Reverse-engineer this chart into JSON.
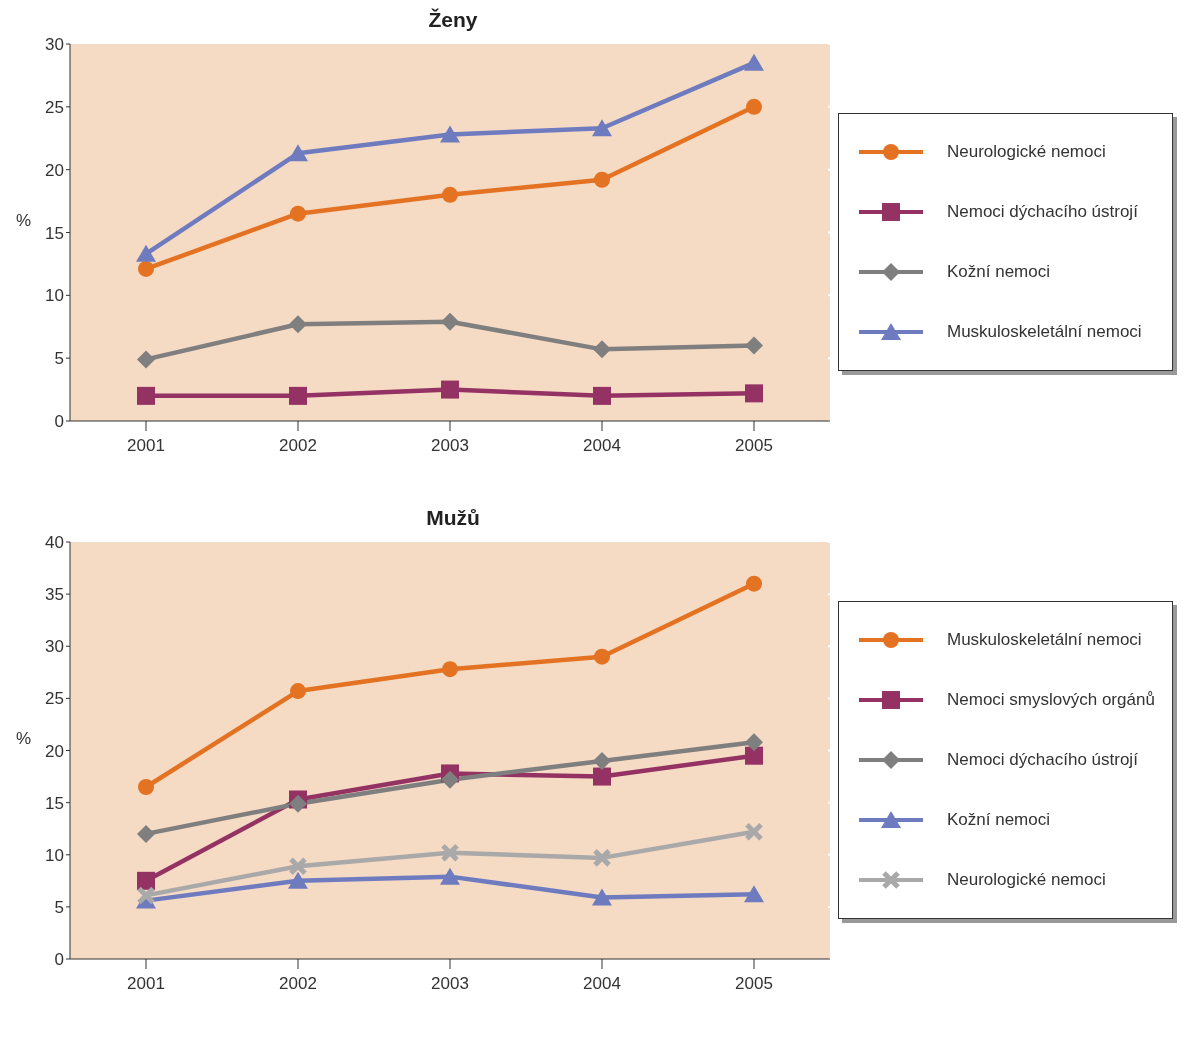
{
  "chart_data": [
    {
      "type": "line",
      "title": "Ženy",
      "ylabel": "%",
      "categories": [
        "2001",
        "2002",
        "2003",
        "2004",
        "2005"
      ],
      "ylim": [
        0,
        30
      ],
      "yticks": [
        0,
        5,
        10,
        15,
        20,
        25,
        30
      ],
      "grid": "y",
      "legend": "right",
      "line_style": "solid",
      "series": [
        {
          "name": "Neurologické nemoci",
          "color": "#e37222",
          "marker": "circle",
          "values": [
            12.1,
            16.5,
            18,
            19.2,
            25
          ]
        },
        {
          "name": "Nemoci dýchacího ústrojí",
          "color": "#953264",
          "marker": "square",
          "values": [
            2,
            2,
            2.5,
            2,
            2.2
          ]
        },
        {
          "name": "Kožní nemoci",
          "color": "#7f7f7f",
          "marker": "diamond",
          "values": [
            4.9,
            7.7,
            7.9,
            5.7,
            6
          ]
        },
        {
          "name": "Muskuloskeletální nemoci",
          "color": "#6f7bbf",
          "marker": "triangle",
          "values": [
            13.3,
            21.3,
            22.8,
            23.3,
            28.5
          ]
        }
      ]
    },
    {
      "type": "line",
      "title": "Mužů",
      "ylabel": "%",
      "categories": [
        "2001",
        "2002",
        "2003",
        "2004",
        "2005"
      ],
      "ylim": [
        0,
        40
      ],
      "yticks": [
        0,
        5,
        10,
        15,
        20,
        25,
        30,
        35,
        40
      ],
      "grid": "y",
      "legend": "right",
      "line_style": "solid",
      "series": [
        {
          "name": "Muskuloskeletální nemoci",
          "color": "#e37222",
          "marker": "circle",
          "values": [
            16.5,
            25.7,
            27.8,
            29,
            36
          ]
        },
        {
          "name": "Nemoci smyslových orgánů",
          "color": "#953264",
          "marker": "square",
          "values": [
            7.5,
            15.3,
            17.8,
            17.5,
            19.5
          ]
        },
        {
          "name": "Nemoci dýchacího ústrojí",
          "color": "#7f7f7f",
          "marker": "diamond",
          "values": [
            12,
            14.9,
            17.2,
            19,
            20.8
          ]
        },
        {
          "name": "Kožní nemoci",
          "color": "#6f7bbf",
          "marker": "triangle",
          "values": [
            5.6,
            7.5,
            7.9,
            5.9,
            6.2
          ]
        },
        {
          "name": "Neurologické nemoci",
          "color": "#a9a9a9",
          "marker": "cross",
          "values": [
            6.1,
            8.9,
            10.2,
            9.7,
            12.2
          ]
        }
      ]
    }
  ]
}
